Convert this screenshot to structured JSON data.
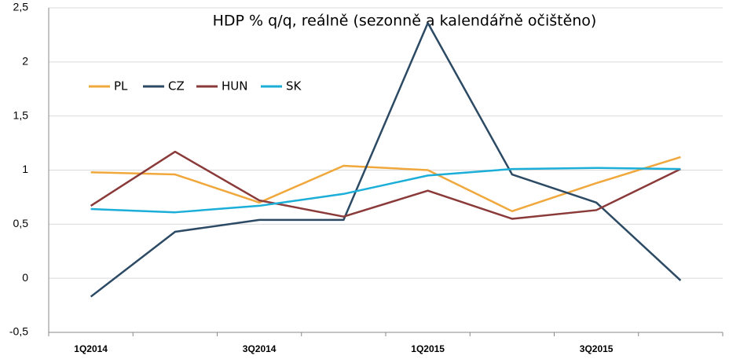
{
  "chart_data": {
    "type": "line",
    "title": "HDP % q/q, reálně (sezonně a kalendářně očištěno)",
    "categories": [
      "1Q2014",
      null,
      "3Q2014",
      null,
      "1Q2015",
      null,
      "3Q2015",
      null
    ],
    "series": [
      {
        "name": "PL",
        "color": "#f0a83c",
        "values": [
          0.98,
          0.96,
          0.7,
          1.04,
          1.0,
          0.62,
          0.88,
          1.12
        ]
      },
      {
        "name": "CZ",
        "color": "#2c4a64",
        "values": [
          -0.17,
          0.43,
          0.54,
          0.54,
          2.36,
          0.96,
          0.7,
          -0.02
        ]
      },
      {
        "name": "HUN",
        "color": "#8b3a3a",
        "values": [
          0.67,
          1.17,
          0.72,
          0.57,
          0.81,
          0.55,
          0.63,
          1.01
        ]
      },
      {
        "name": "SK",
        "color": "#1aaed8",
        "values": [
          0.64,
          0.61,
          0.67,
          0.78,
          0.95,
          1.01,
          1.02,
          1.01
        ]
      }
    ],
    "ylim": [
      -0.5,
      2.5
    ],
    "yticks": [
      {
        "value": -0.5,
        "label": "-0,5"
      },
      0,
      {
        "value": 0.5,
        "label": "0,5"
      },
      1,
      {
        "value": 1.5,
        "label": "1,5"
      },
      2,
      {
        "value": 2.5,
        "label": "2,5"
      }
    ],
    "grid": true
  }
}
